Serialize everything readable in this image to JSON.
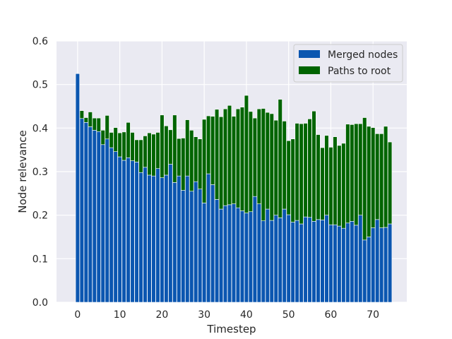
{
  "chart_data": {
    "type": "bar",
    "stacked": true,
    "xlabel": "Timestep",
    "ylabel": "Node relevance",
    "xlim": [
      -5,
      78
    ],
    "ylim": [
      0,
      0.6
    ],
    "xticks": [
      0,
      10,
      20,
      30,
      40,
      50,
      60,
      70
    ],
    "yticks": [
      0.0,
      0.1,
      0.2,
      0.3,
      0.4,
      0.5,
      0.6
    ],
    "ytick_labels": [
      "0.0",
      "0.1",
      "0.2",
      "0.3",
      "0.4",
      "0.5",
      "0.6"
    ],
    "grid": true,
    "legend_position": "top-right",
    "background": "#eaeaf2",
    "x": [
      0,
      1,
      2,
      3,
      4,
      5,
      6,
      7,
      8,
      9,
      10,
      11,
      12,
      13,
      14,
      15,
      16,
      17,
      18,
      19,
      20,
      21,
      22,
      23,
      24,
      25,
      26,
      27,
      28,
      29,
      30,
      31,
      32,
      33,
      34,
      35,
      36,
      37,
      38,
      39,
      40,
      41,
      42,
      43,
      44,
      45,
      46,
      47,
      48,
      49,
      50,
      51,
      52,
      53,
      54,
      55,
      56,
      57,
      58,
      59,
      60,
      61,
      62,
      63,
      64,
      65,
      66,
      67,
      68,
      69,
      70,
      71,
      72,
      73,
      74
    ],
    "series": [
      {
        "name": "Merged nodes",
        "color": "#0b56b0",
        "values": [
          0.525,
          0.422,
          0.413,
          0.403,
          0.395,
          0.392,
          0.362,
          0.375,
          0.355,
          0.346,
          0.334,
          0.326,
          0.332,
          0.325,
          0.322,
          0.298,
          0.31,
          0.292,
          0.29,
          0.307,
          0.286,
          0.292,
          0.317,
          0.275,
          0.29,
          0.257,
          0.29,
          0.255,
          0.277,
          0.26,
          0.228,
          0.295,
          0.27,
          0.236,
          0.214,
          0.222,
          0.224,
          0.226,
          0.217,
          0.21,
          0.205,
          0.208,
          0.243,
          0.226,
          0.187,
          0.214,
          0.188,
          0.2,
          0.194,
          0.214,
          0.201,
          0.184,
          0.188,
          0.18,
          0.196,
          0.195,
          0.186,
          0.19,
          0.189,
          0.2,
          0.178,
          0.178,
          0.175,
          0.17,
          0.182,
          0.186,
          0.177,
          0.2,
          0.143,
          0.15,
          0.171,
          0.19,
          0.171,
          0.172,
          0.18
        ]
      },
      {
        "name": "Paths to root",
        "color": "#006400",
        "values": [
          0.0,
          0.018,
          0.011,
          0.034,
          0.028,
          0.031,
          0.033,
          0.054,
          0.035,
          0.055,
          0.055,
          0.065,
          0.081,
          0.065,
          0.051,
          0.075,
          0.072,
          0.097,
          0.096,
          0.083,
          0.144,
          0.113,
          0.079,
          0.155,
          0.086,
          0.12,
          0.129,
          0.14,
          0.103,
          0.115,
          0.192,
          0.133,
          0.157,
          0.207,
          0.212,
          0.222,
          0.228,
          0.201,
          0.227,
          0.238,
          0.27,
          0.23,
          0.18,
          0.218,
          0.258,
          0.222,
          0.245,
          0.218,
          0.272,
          0.202,
          0.17,
          0.191,
          0.223,
          0.23,
          0.215,
          0.226,
          0.253,
          0.195,
          0.166,
          0.183,
          0.178,
          0.202,
          0.185,
          0.195,
          0.227,
          0.222,
          0.233,
          0.21,
          0.281,
          0.254,
          0.23,
          0.197,
          0.216,
          0.232,
          0.188
        ]
      }
    ]
  }
}
